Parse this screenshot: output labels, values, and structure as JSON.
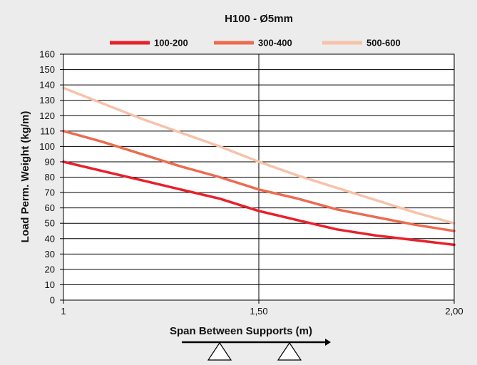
{
  "chart_data": {
    "type": "line",
    "title": "H100 - Ø5mm",
    "xlabel": "Span Between Supports (m)",
    "ylabel": "Load Perm. Weight (kg/m)",
    "xlim": [
      1,
      2
    ],
    "ylim": [
      0,
      160
    ],
    "x_ticks": [
      1,
      1.5,
      2
    ],
    "x_tick_labels": [
      "1",
      "1,50",
      "2,00"
    ],
    "y_ticks": [
      0,
      10,
      20,
      30,
      40,
      50,
      60,
      70,
      80,
      90,
      100,
      110,
      120,
      130,
      140,
      150,
      160
    ],
    "grid": true,
    "legend_position": "top",
    "series": [
      {
        "name": "100-200",
        "color": "#e8202a",
        "x": [
          1,
          1.1,
          1.2,
          1.3,
          1.4,
          1.5,
          1.6,
          1.7,
          1.8,
          1.9,
          2.0
        ],
        "y": [
          90,
          84,
          78,
          72,
          66,
          58,
          52,
          46,
          42,
          39,
          36
        ]
      },
      {
        "name": "300-400",
        "color": "#ec6b4f",
        "x": [
          1,
          1.1,
          1.2,
          1.3,
          1.4,
          1.5,
          1.6,
          1.7,
          1.8,
          1.9,
          2.0
        ],
        "y": [
          110,
          103,
          95,
          87,
          80,
          72,
          66,
          59,
          54,
          49,
          45
        ]
      },
      {
        "name": "500-600",
        "color": "#f7c2aa",
        "x": [
          1,
          1.1,
          1.2,
          1.3,
          1.4,
          1.5,
          1.6,
          1.7,
          1.8,
          1.9,
          2.0
        ],
        "y": [
          138,
          128,
          118,
          109,
          100,
          90,
          81,
          73,
          65,
          57,
          50
        ]
      }
    ]
  }
}
